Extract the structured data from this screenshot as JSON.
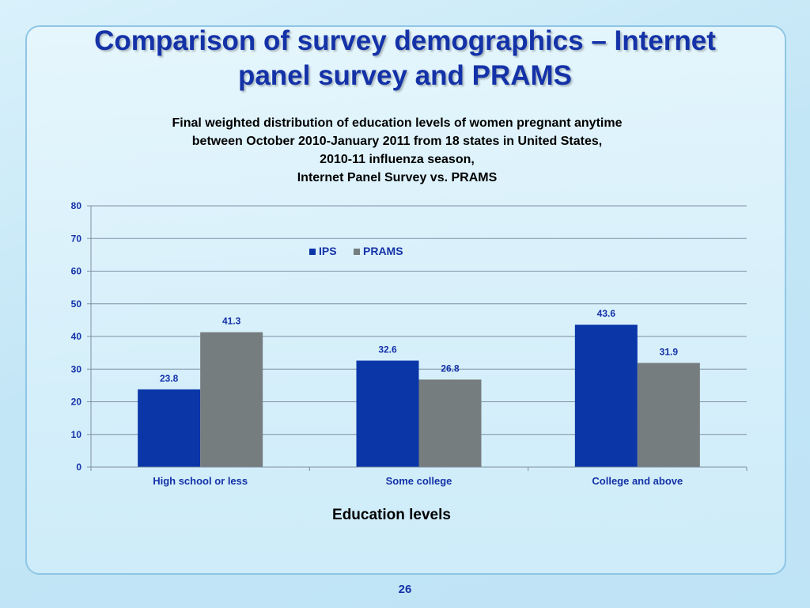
{
  "slide": {
    "title_line1": "Comparison of survey demographics – Internet",
    "title_line2": "panel survey and PRAMS",
    "page_number": "26"
  },
  "chart_data": {
    "type": "bar",
    "title_lines": [
      "Final weighted distribution of education levels of women pregnant anytime",
      "between October 2010-January 2011 from 18 states in United States,",
      "2010-11 influenza season,",
      "Internet Panel Survey vs. PRAMS"
    ],
    "xlabel": "Education levels",
    "ylabel": "",
    "categories": [
      "High school or less",
      "Some college",
      "College and above"
    ],
    "series": [
      {
        "name": "IPS",
        "values": [
          23.8,
          32.6,
          43.6
        ],
        "color": "#0a36a8"
      },
      {
        "name": "PRAMS",
        "values": [
          41.3,
          26.8,
          31.9
        ],
        "color": "#767d7f"
      }
    ],
    "ylim": [
      0,
      80
    ],
    "yticks": [
      0,
      10,
      20,
      30,
      40,
      50,
      60,
      70,
      80
    ],
    "grid": true,
    "legend_position": "top-center",
    "data_labels": true,
    "label_color": "#1432a8"
  }
}
